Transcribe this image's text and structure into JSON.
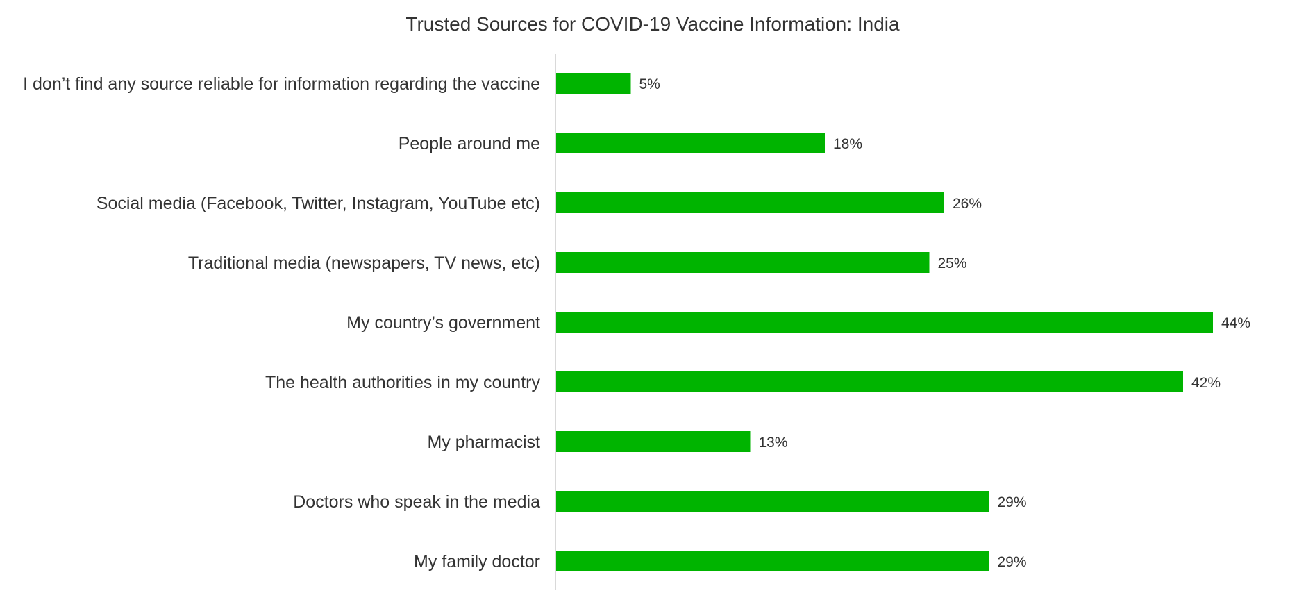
{
  "chart_data": {
    "type": "bar",
    "orientation": "horizontal",
    "title": "Trusted Sources for COVID-19 Vaccine Information: India",
    "xlabel": "",
    "ylabel": "",
    "categories": [
      "I don’t find any source reliable for information regarding the vaccine",
      "People around me",
      "Social media (Facebook, Twitter, Instagram, YouTube etc)",
      "Traditional media (newspapers, TV news, etc)",
      "My country’s government",
      "The health authorities in my country",
      "My pharmacist",
      "Doctors who speak in the media",
      "My family doctor"
    ],
    "values": [
      5,
      18,
      26,
      25,
      44,
      42,
      13,
      29,
      29
    ],
    "value_labels": [
      "5%",
      "18%",
      "26%",
      "25%",
      "44%",
      "42%",
      "13%",
      "29%",
      "29%"
    ],
    "unit": "%",
    "xlim": [
      0,
      50
    ],
    "grid": false,
    "legend": "none",
    "bar_color": "#00b400",
    "axis_color": "#d9d9d9",
    "text_color": "#333333"
  }
}
